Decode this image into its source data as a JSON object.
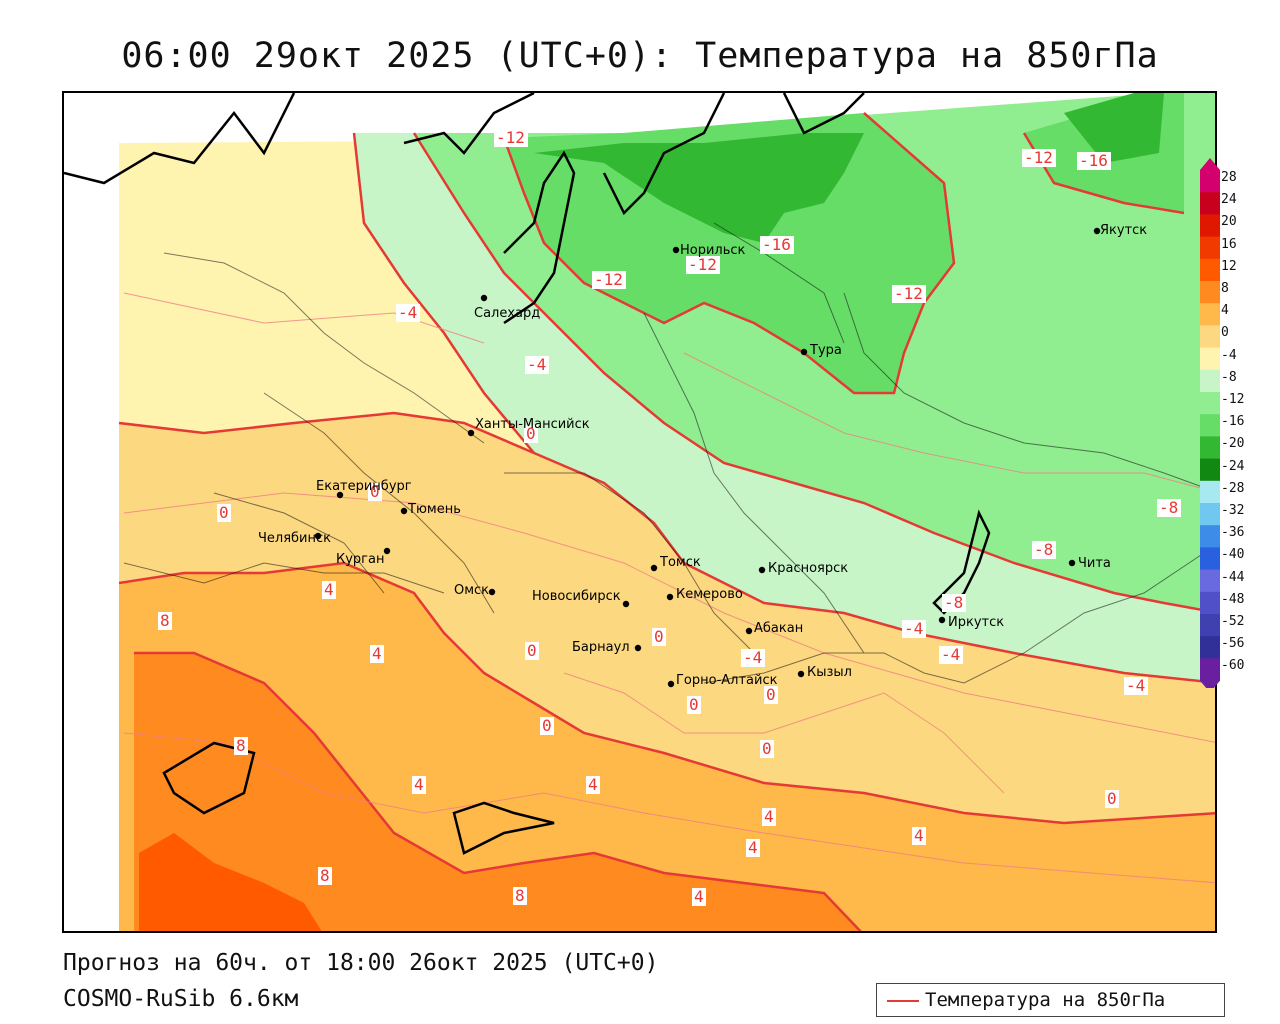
{
  "title": "06:00 29окт 2025 (UTC+0): Температура на 850гПа",
  "footer": {
    "forecast": "Прогноз на 60ч. от 18:00 26окт 2025 (UTC+0)",
    "model": "COSMO-RuSib 6.6км"
  },
  "legend": {
    "line_label": "Температура на 850гПа",
    "line_color": "#e53935"
  },
  "colorbar": {
    "levels": [
      "28",
      "24",
      "20",
      "16",
      "12",
      "8",
      "4",
      "0",
      "-4",
      "-8",
      "-12",
      "-16",
      "-20",
      "-24",
      "-28",
      "-32",
      "-36",
      "-40",
      "-44",
      "-48",
      "-52",
      "-56",
      "-60"
    ],
    "colors": [
      "#d4006e",
      "#c8001e",
      "#e01800",
      "#f03a00",
      "#ff5a00",
      "#ff8a20",
      "#ffb84a",
      "#fcd880",
      "#fff3b0",
      "#c8f5c8",
      "#90ee90",
      "#66dd66",
      "#33b833",
      "#118811",
      "#a8e8f0",
      "#70c8f0",
      "#3c8ce8",
      "#2860e0",
      "#6a6ae0",
      "#5050c8",
      "#4040b0",
      "#303098",
      "#6a1fa0"
    ]
  },
  "cities": [
    {
      "name": "Норильск"
    },
    {
      "name": "Салехард"
    },
    {
      "name": "Тура"
    },
    {
      "name": "Якутск"
    },
    {
      "name": "Ханты-Мансийск"
    },
    {
      "name": "Екатеринбург"
    },
    {
      "name": "Тюмень"
    },
    {
      "name": "Челябинск"
    },
    {
      "name": "Курган"
    },
    {
      "name": "Омск"
    },
    {
      "name": "Новосибирск"
    },
    {
      "name": "Томск"
    },
    {
      "name": "Кемерово"
    },
    {
      "name": "Красноярск"
    },
    {
      "name": "Барнаул"
    },
    {
      "name": "Абакан"
    },
    {
      "name": "Горно-Алтайск"
    },
    {
      "name": "Кызыл"
    },
    {
      "name": "Иркутск"
    },
    {
      "name": "Чита"
    }
  ],
  "isotherm_labels": [
    "-12",
    "-12",
    "-16",
    "-16",
    "-12",
    "-12",
    "-12",
    "-4",
    "-4",
    "0",
    "0",
    "0",
    "4",
    "8",
    "4",
    "0",
    "0",
    "-4",
    "-8",
    "-8",
    "-4",
    "-4",
    "-4",
    "0",
    "0",
    "0",
    "0",
    "4",
    "4",
    "4",
    "4",
    "4",
    "0",
    "8",
    "8",
    "8",
    "4",
    "-8"
  ]
}
